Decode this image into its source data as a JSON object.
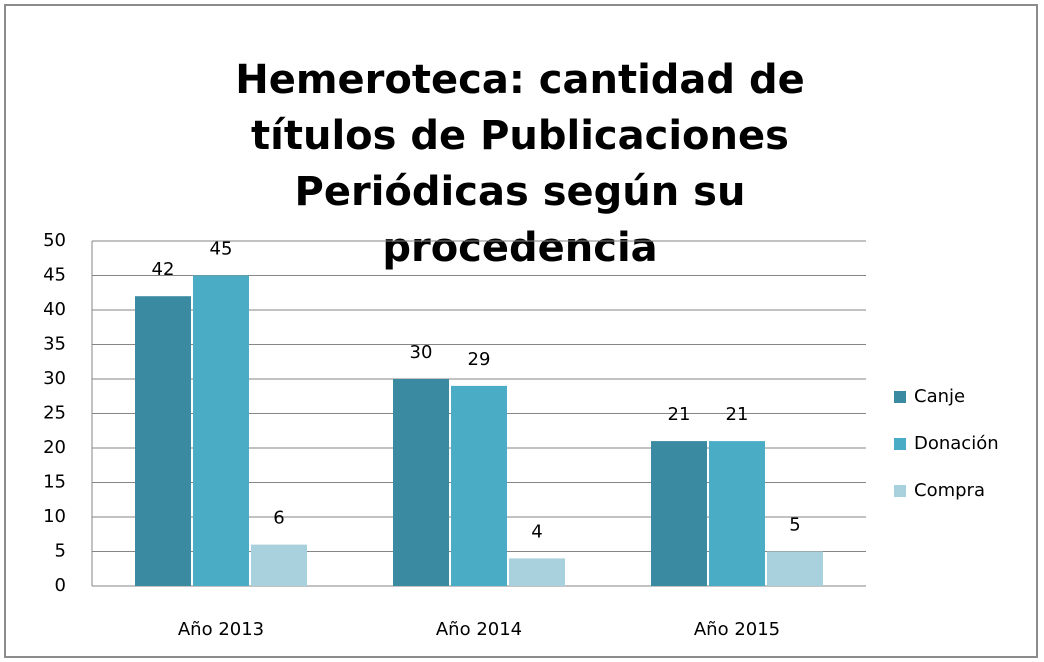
{
  "chart_data": {
    "type": "bar",
    "title": "Hemeroteca: cantidad de títulos de Publicaciones Periódicas según su procedencia",
    "categories": [
      "Año 2013",
      "Año 2014",
      "Año 2015"
    ],
    "series": [
      {
        "name": "Canje",
        "color": "#3a8ba1",
        "values": [
          42,
          30,
          21
        ]
      },
      {
        "name": "Donación",
        "color": "#4bacc6",
        "values": [
          45,
          29,
          21
        ]
      },
      {
        "name": "Compra",
        "color": "#a9d1dd",
        "values": [
          6,
          4,
          5
        ]
      }
    ],
    "ylim": [
      0,
      50
    ],
    "yticks": [
      0,
      5,
      10,
      15,
      20,
      25,
      30,
      35,
      40,
      45,
      50
    ],
    "grid": true,
    "legend": "right"
  }
}
